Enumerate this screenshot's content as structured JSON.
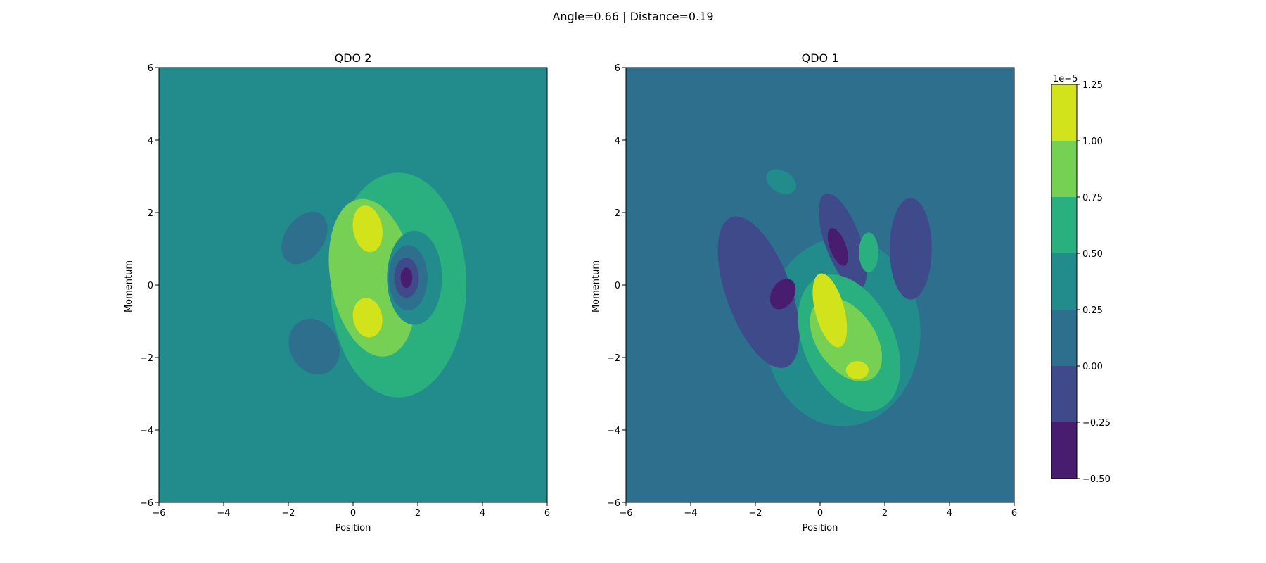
{
  "suptitle": "Angle=0.66 | Distance=0.19",
  "colormap": [
    "#481c6e",
    "#3e4a89",
    "#2e6f8e",
    "#228c8d",
    "#2ab07f",
    "#75d054",
    "#d2e21b"
  ],
  "colorbar": {
    "ticks": [
      -0.5,
      -0.25,
      0.0,
      0.25,
      0.5,
      0.75,
      1.0,
      1.25
    ],
    "tick_labels": [
      "−0.50",
      "−0.25",
      "0.00",
      "0.25",
      "0.50",
      "0.75",
      "1.00",
      "1.25"
    ],
    "exponent_label": "1e−5"
  },
  "chart_data": [
    {
      "type": "contourf",
      "title": "QDO 2",
      "xlabel": "Position",
      "ylabel": "Momentum",
      "xlim": [
        -6,
        6
      ],
      "ylim": [
        -6,
        6
      ],
      "xticks": [
        -6,
        -4,
        -2,
        0,
        2,
        4,
        6
      ],
      "yticks": [
        -6,
        -4,
        -2,
        0,
        2,
        4,
        6
      ],
      "tick_labels": [
        "−6",
        "−4",
        "−2",
        "0",
        "2",
        "4",
        "6"
      ],
      "levels": [
        -0.5,
        -0.25,
        0.0,
        0.25,
        0.5,
        0.75,
        1.0,
        1.25
      ],
      "level_scale": 1e-05,
      "background_band": 3,
      "regions": [
        {
          "band": 4,
          "center": [
            1.4,
            0.0
          ],
          "radii": [
            2.1,
            3.1
          ],
          "rotation": 0
        },
        {
          "band": 5,
          "center": [
            0.6,
            0.2
          ],
          "radii": [
            1.3,
            2.2
          ],
          "rotation": 10
        },
        {
          "band": 6,
          "center": [
            0.45,
            1.55
          ],
          "radii": [
            0.45,
            0.65
          ],
          "rotation": 10
        },
        {
          "band": 6,
          "center": [
            0.45,
            -0.9
          ],
          "radii": [
            0.45,
            0.55
          ],
          "rotation": 10
        },
        {
          "band": 3,
          "center": [
            1.9,
            0.2
          ],
          "radii": [
            0.85,
            1.3
          ],
          "rotation": 0
        },
        {
          "band": 2,
          "center": [
            1.7,
            0.2
          ],
          "radii": [
            0.6,
            0.9
          ],
          "rotation": 0
        },
        {
          "band": 1,
          "center": [
            1.65,
            0.2
          ],
          "radii": [
            0.38,
            0.55
          ],
          "rotation": 0
        },
        {
          "band": 0,
          "center": [
            1.65,
            0.2
          ],
          "radii": [
            0.18,
            0.28
          ],
          "rotation": 0
        },
        {
          "band": 2,
          "center": [
            -1.5,
            1.3
          ],
          "radii": [
            0.6,
            0.8
          ],
          "rotation": -35
        },
        {
          "band": 2,
          "center": [
            -1.2,
            -1.7
          ],
          "radii": [
            0.75,
            0.8
          ],
          "rotation": 30
        }
      ]
    },
    {
      "type": "contourf",
      "title": "QDO 1",
      "xlabel": "Position",
      "ylabel": "Momentum",
      "xlim": [
        -6,
        6
      ],
      "ylim": [
        -6,
        6
      ],
      "xticks": [
        -6,
        -4,
        -2,
        0,
        2,
        4,
        6
      ],
      "yticks": [
        -6,
        -4,
        -2,
        0,
        2,
        4,
        6
      ],
      "tick_labels": [
        "−6",
        "−4",
        "−2",
        "0",
        "2",
        "4",
        "6"
      ],
      "levels": [
        -0.5,
        -0.25,
        0.0,
        0.25,
        0.5,
        0.75,
        1.0,
        1.25
      ],
      "level_scale": 1e-05,
      "background_band": 2,
      "regions": [
        {
          "band": 3,
          "center": [
            0.7,
            -1.3
          ],
          "radii": [
            2.4,
            2.6
          ],
          "rotation": 0
        },
        {
          "band": 1,
          "center": [
            -1.9,
            -0.2
          ],
          "radii": [
            1.0,
            2.2
          ],
          "rotation": 20
        },
        {
          "band": 1,
          "center": [
            0.7,
            1.2
          ],
          "radii": [
            0.55,
            1.4
          ],
          "rotation": 20
        },
        {
          "band": 1,
          "center": [
            2.8,
            1.0
          ],
          "radii": [
            0.65,
            1.4
          ],
          "rotation": 0
        },
        {
          "band": 0,
          "center": [
            -1.15,
            -0.25
          ],
          "radii": [
            0.35,
            0.45
          ],
          "rotation": -30
        },
        {
          "band": 0,
          "center": [
            0.55,
            1.05
          ],
          "radii": [
            0.25,
            0.55
          ],
          "rotation": 20
        },
        {
          "band": 3,
          "center": [
            -1.2,
            2.85
          ],
          "radii": [
            0.5,
            0.3
          ],
          "rotation": -30
        },
        {
          "band": 4,
          "center": [
            0.9,
            -1.6
          ],
          "radii": [
            1.4,
            2.0
          ],
          "rotation": 25
        },
        {
          "band": 4,
          "center": [
            1.5,
            0.9
          ],
          "radii": [
            0.3,
            0.55
          ],
          "rotation": 0
        },
        {
          "band": 5,
          "center": [
            0.8,
            -1.5
          ],
          "radii": [
            0.9,
            1.3
          ],
          "rotation": 35
        },
        {
          "band": 6,
          "center": [
            0.3,
            -0.7
          ],
          "radii": [
            0.45,
            1.05
          ],
          "rotation": 15
        },
        {
          "band": 6,
          "center": [
            1.15,
            -2.35
          ],
          "radii": [
            0.35,
            0.25
          ],
          "rotation": 0
        }
      ]
    }
  ]
}
